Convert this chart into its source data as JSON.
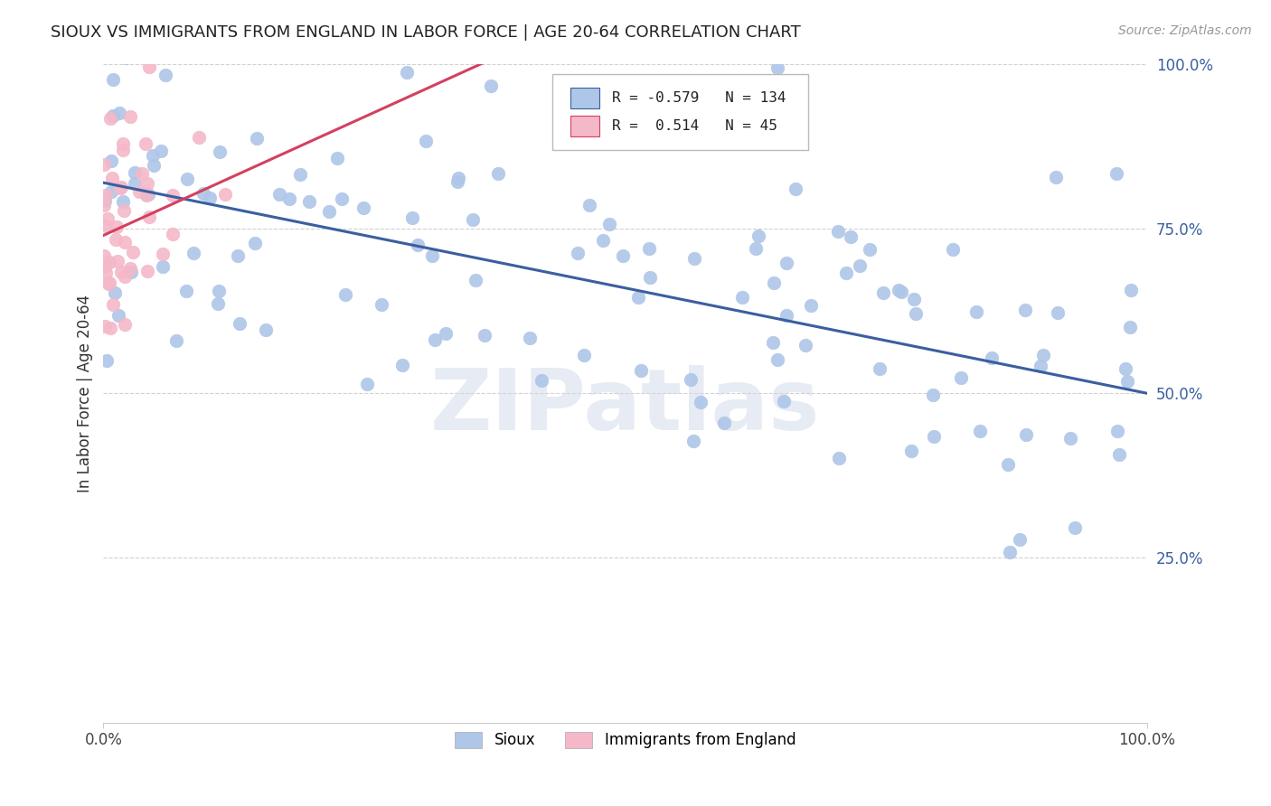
{
  "title": "SIOUX VS IMMIGRANTS FROM ENGLAND IN LABOR FORCE | AGE 20-64 CORRELATION CHART",
  "source": "Source: ZipAtlas.com",
  "ylabel": "In Labor Force | Age 20-64",
  "xmin": 0.0,
  "xmax": 1.0,
  "ymin": 0.0,
  "ymax": 1.0,
  "y_tick_labels": [
    "25.0%",
    "50.0%",
    "75.0%",
    "100.0%"
  ],
  "y_tick_values": [
    0.25,
    0.5,
    0.75,
    1.0
  ],
  "legend_labels": [
    "Sioux",
    "Immigrants from England"
  ],
  "r_blue": -0.579,
  "n_blue": 134,
  "r_pink": 0.514,
  "n_pink": 45,
  "blue_color": "#aec6e8",
  "pink_color": "#f4b8c8",
  "blue_line_color": "#3a5fa0",
  "pink_line_color": "#d44060",
  "watermark": "ZIPatlas",
  "background_color": "#ffffff",
  "grid_color": "#cccccc",
  "blue_intercept": 0.82,
  "blue_slope": -0.32,
  "pink_intercept": 0.74,
  "pink_slope": 0.72
}
